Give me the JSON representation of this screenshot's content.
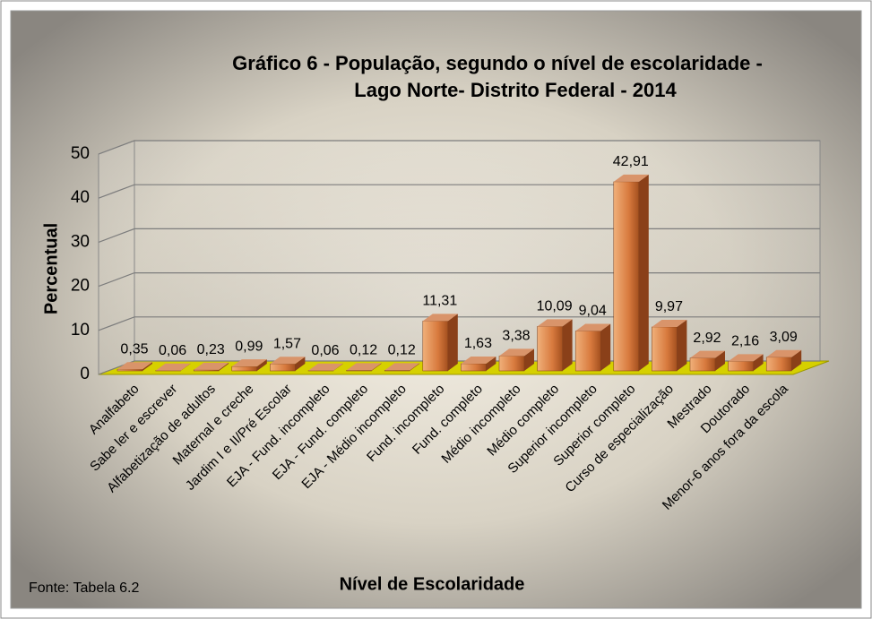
{
  "chart_data": {
    "type": "bar3d",
    "title": [
      "Gráfico 6 - População, segundo o nível de escolaridade -",
      "Lago Norte- Distrito Federal - 2014"
    ],
    "x_label": "Nível de Escolaridade",
    "y_label": "Percentual",
    "source": "Fonte: Tabela 6.2",
    "categories": [
      "Analfabeto",
      "Sabe ler e escrever",
      "Alfabetização de adultos",
      "Maternal e creche",
      "Jardim I e II/Pré Escolar",
      "EJA - Fund. incompleto",
      "EJA - Fund. completo",
      "EJA - Médio incompleto",
      "Fund. incompleto",
      "Fund. completo",
      "Médio incompleto",
      "Médio completo",
      "Superior incompleto",
      "Superior completo",
      "Curso de especialização",
      "Mestrado",
      "Doutorado",
      "Menor-6 anos fora da escola"
    ],
    "values": [
      0.35,
      0.06,
      0.23,
      0.99,
      1.57,
      0.06,
      0.12,
      0.12,
      11.31,
      1.63,
      3.38,
      10.09,
      9.04,
      42.91,
      9.97,
      2.92,
      2.16,
      3.09
    ],
    "value_labels": [
      "0,35",
      "0,06",
      "0,23",
      "0,99",
      "1,57",
      "0,06",
      "0,12",
      "0,12",
      "11,31",
      "1,63",
      "3,38",
      "10,09",
      "9,04",
      "42,91",
      "9,97",
      "2,92",
      "2,16",
      "3,09"
    ],
    "color": "#c8632a",
    "ylim": [
      0,
      50
    ],
    "yticks": [
      0,
      10,
      20,
      30,
      40,
      50
    ],
    "grid": true
  }
}
